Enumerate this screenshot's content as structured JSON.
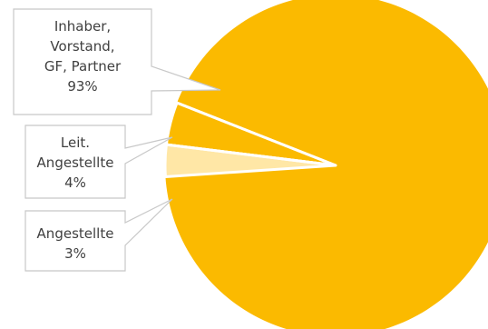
{
  "chart_data": {
    "type": "pie",
    "title": "",
    "slices": [
      {
        "label_lines": [
          "Inhaber,",
          "Vorstand,",
          "GF, Partner"
        ],
        "value_label": "93%",
        "value": 93,
        "color": "#FBBA00"
      },
      {
        "label_lines": [
          "Leit.",
          "Angestellte"
        ],
        "value_label": "4%",
        "value": 4,
        "color": "#FBBA00"
      },
      {
        "label_lines": [
          "Angestellte"
        ],
        "value_label": "3%",
        "value": 3,
        "color": "#FFE7A6"
      }
    ],
    "slice_border_color": "#ffffff",
    "callout_border_color": "#c8c8c8",
    "legend": "none"
  }
}
